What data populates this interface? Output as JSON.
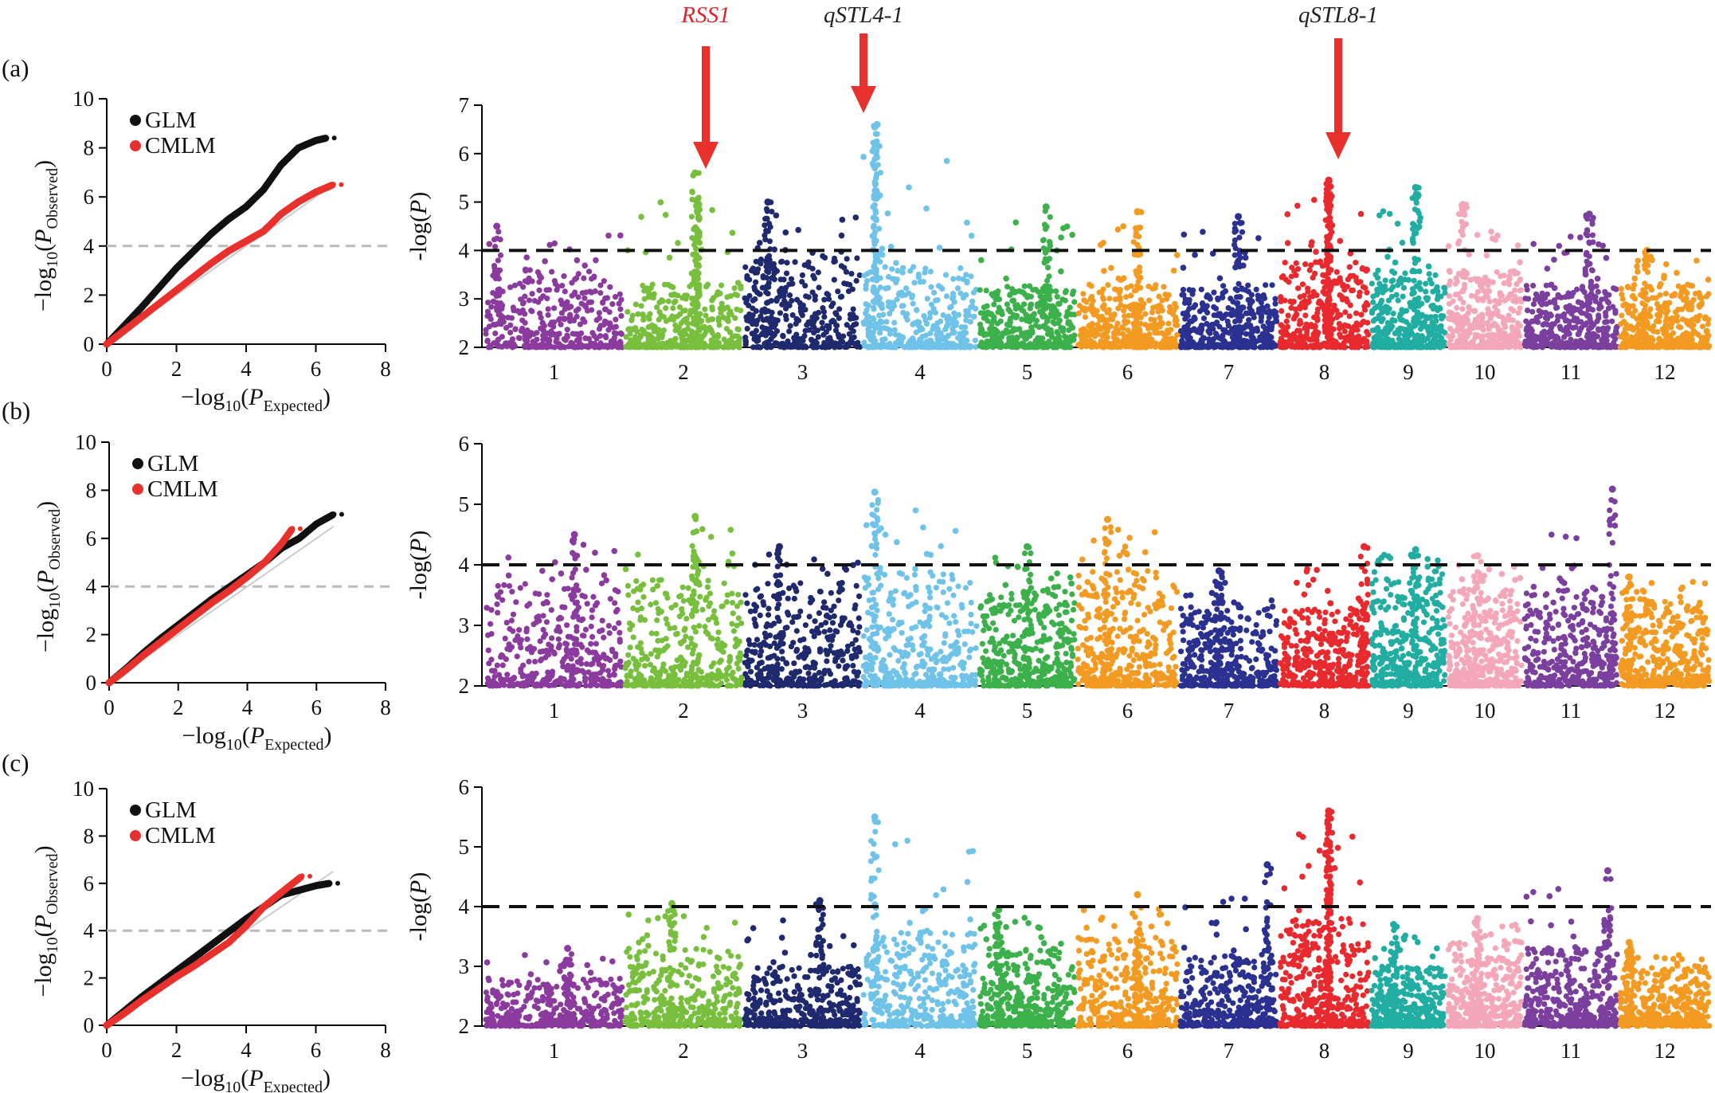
{
  "figure": {
    "panels": [
      "(a)",
      "(b)",
      "(c)"
    ],
    "markers": [
      {
        "label": "RSS1",
        "chromosome": 2,
        "color": "#d7262b"
      },
      {
        "label": "qSTL4-1",
        "chromosome": 4,
        "color": "#222222"
      },
      {
        "label": "qSTL8-1",
        "chromosome": 8,
        "color": "#222222"
      }
    ],
    "arrow_color": "#e8302c"
  },
  "colors": {
    "glm": "#111111",
    "cmlm": "#e8302c",
    "threshold_dash": "#111111",
    "qq_threshold": "#bbbbbb",
    "chromosomes": [
      "#8b3a9e",
      "#78bf3e",
      "#1f2a6e",
      "#6fc2e8",
      "#3cb04a",
      "#f29a21",
      "#2a3190",
      "#e82a2e",
      "#21ada2",
      "#f4a7b9",
      "#7b3f9e",
      "#f29a21"
    ]
  },
  "chart_data": [
    {
      "type": "scatter",
      "panel": "(a)",
      "subtype": "qq-plot",
      "xlabel_main": "−log",
      "xlabel_sub": "10",
      "xlabel_open": "(",
      "xlabel_P": "P",
      "xlabel_subscript": "Expected",
      "xlabel_close": ")",
      "ylabel_main": "−log",
      "ylabel_sub": "10",
      "ylabel_open": "(",
      "ylabel_P": "P",
      "ylabel_subscript": "Observed",
      "ylabel_close": ")",
      "xlim": [
        0,
        8
      ],
      "ylim": [
        0,
        10
      ],
      "xticks": [
        "0",
        "2",
        "4",
        "6",
        "8"
      ],
      "yticks": [
        "0",
        "2",
        "4",
        "6",
        "8",
        "10"
      ],
      "threshold": 4,
      "legend": [
        "GLM",
        "CMLM"
      ],
      "series": [
        {
          "name": "GLM",
          "points": [
            [
              0,
              0
            ],
            [
              0.5,
              0.75
            ],
            [
              1,
              1.5
            ],
            [
              1.5,
              2.3
            ],
            [
              2,
              3.1
            ],
            [
              2.5,
              3.8
            ],
            [
              3,
              4.5
            ],
            [
              3.5,
              5.1
            ],
            [
              4,
              5.6
            ],
            [
              4.5,
              6.3
            ],
            [
              5,
              7.3
            ],
            [
              5.5,
              8.0
            ],
            [
              6,
              8.3
            ],
            [
              6.3,
              8.4
            ]
          ]
        },
        {
          "name": "CMLM",
          "points": [
            [
              0,
              0
            ],
            [
              0.5,
              0.55
            ],
            [
              1,
              1.1
            ],
            [
              1.5,
              1.65
            ],
            [
              2,
              2.2
            ],
            [
              2.5,
              2.75
            ],
            [
              3,
              3.3
            ],
            [
              3.5,
              3.8
            ],
            [
              4,
              4.2
            ],
            [
              4.5,
              4.6
            ],
            [
              5,
              5.3
            ],
            [
              5.5,
              5.8
            ],
            [
              6,
              6.2
            ],
            [
              6.5,
              6.5
            ]
          ]
        }
      ]
    },
    {
      "type": "scatter",
      "panel": "(b)",
      "subtype": "qq-plot",
      "xlabel_main": "−log",
      "xlabel_sub": "10",
      "xlabel_open": "(",
      "xlabel_P": "P",
      "xlabel_subscript": "Expected",
      "xlabel_close": ")",
      "ylabel_main": "−log",
      "ylabel_sub": "10",
      "ylabel_open": "(",
      "ylabel_P": "P",
      "ylabel_subscript": "Observed",
      "ylabel_close": ")",
      "xlim": [
        0,
        8
      ],
      "ylim": [
        0,
        10
      ],
      "xticks": [
        "0",
        "2",
        "4",
        "6",
        "8"
      ],
      "yticks": [
        "0",
        "2",
        "4",
        "6",
        "8",
        "10"
      ],
      "threshold": 4,
      "legend": [
        "GLM",
        "CMLM"
      ],
      "series": [
        {
          "name": "GLM",
          "points": [
            [
              0,
              0
            ],
            [
              0.5,
              0.6
            ],
            [
              1,
              1.25
            ],
            [
              1.5,
              1.85
            ],
            [
              2,
              2.4
            ],
            [
              2.5,
              2.95
            ],
            [
              3,
              3.5
            ],
            [
              3.5,
              4.0
            ],
            [
              4,
              4.5
            ],
            [
              4.5,
              5.0
            ],
            [
              5,
              5.6
            ],
            [
              5.5,
              6.0
            ],
            [
              6,
              6.6
            ],
            [
              6.5,
              7.0
            ]
          ]
        },
        {
          "name": "CMLM",
          "points": [
            [
              0,
              0
            ],
            [
              0.5,
              0.55
            ],
            [
              1,
              1.15
            ],
            [
              1.5,
              1.7
            ],
            [
              2,
              2.25
            ],
            [
              2.5,
              2.8
            ],
            [
              3,
              3.35
            ],
            [
              3.5,
              3.85
            ],
            [
              4,
              4.4
            ],
            [
              4.5,
              5.0
            ],
            [
              5,
              5.8
            ],
            [
              5.3,
              6.4
            ]
          ]
        }
      ]
    },
    {
      "type": "scatter",
      "panel": "(c)",
      "subtype": "qq-plot",
      "xlabel_main": "−log",
      "xlabel_sub": "10",
      "xlabel_open": "(",
      "xlabel_P": "P",
      "xlabel_subscript": "Expected",
      "xlabel_close": ")",
      "ylabel_main": "−log",
      "ylabel_sub": "10",
      "ylabel_open": "(",
      "ylabel_P": "P",
      "ylabel_subscript": "Observed",
      "ylabel_close": ")",
      "xlim": [
        0,
        8
      ],
      "ylim": [
        0,
        10
      ],
      "xticks": [
        "0",
        "2",
        "4",
        "6",
        "8"
      ],
      "yticks": [
        "0",
        "2",
        "4",
        "6",
        "8",
        "10"
      ],
      "threshold": 4,
      "legend": [
        "GLM",
        "CMLM"
      ],
      "series": [
        {
          "name": "GLM",
          "points": [
            [
              0,
              0
            ],
            [
              0.5,
              0.6
            ],
            [
              1,
              1.2
            ],
            [
              1.5,
              1.75
            ],
            [
              2,
              2.3
            ],
            [
              2.5,
              2.85
            ],
            [
              3,
              3.4
            ],
            [
              3.5,
              3.95
            ],
            [
              4,
              4.5
            ],
            [
              4.5,
              5.0
            ],
            [
              5,
              5.5
            ],
            [
              5.5,
              5.7
            ],
            [
              6,
              5.9
            ],
            [
              6.4,
              6.0
            ]
          ]
        },
        {
          "name": "CMLM",
          "points": [
            [
              0,
              0
            ],
            [
              0.5,
              0.5
            ],
            [
              1,
              1.05
            ],
            [
              1.5,
              1.55
            ],
            [
              2,
              2.05
            ],
            [
              2.5,
              2.5
            ],
            [
              3,
              3.0
            ],
            [
              3.5,
              3.5
            ],
            [
              4,
              4.2
            ],
            [
              4.5,
              5.0
            ],
            [
              5,
              5.6
            ],
            [
              5.6,
              6.3
            ]
          ]
        }
      ]
    },
    {
      "type": "scatter",
      "panel": "(a)",
      "subtype": "manhattan",
      "ylabel_text": "-log(",
      "ylabel_P": "P",
      "ylabel_close": ")",
      "ylim": [
        2,
        7
      ],
      "yticks": [
        "2",
        "3",
        "4",
        "5",
        "6",
        "7"
      ],
      "threshold": 4,
      "chromosomes": [
        "1",
        "2",
        "3",
        "4",
        "5",
        "6",
        "7",
        "8",
        "9",
        "10",
        "11",
        "12"
      ],
      "chrom_peaks": [
        4.5,
        5.6,
        5.0,
        6.6,
        4.9,
        4.8,
        4.7,
        5.45,
        5.3,
        4.95,
        4.75,
        4.0
      ],
      "chrom_peak_pos": [
        0.08,
        0.6,
        0.2,
        0.12,
        0.7,
        0.6,
        0.6,
        0.55,
        0.6,
        0.2,
        0.7,
        0.3
      ],
      "chrom_base": [
        3.6,
        3.3,
        3.9,
        3.7,
        3.3,
        3.3,
        3.3,
        3.8,
        3.6,
        3.6,
        3.3,
        3.3
      ],
      "highlight": [
        {
          "chromosome": 2,
          "pos": 0.62,
          "value": 5.05
        },
        {
          "chromosome": 4,
          "pos": 0.1,
          "value": 6.55
        },
        {
          "chromosome": 8,
          "pos": 0.55,
          "value": 5.45
        }
      ]
    },
    {
      "type": "scatter",
      "panel": "(b)",
      "subtype": "manhattan",
      "ylabel_text": "-log(",
      "ylabel_P": "P",
      "ylabel_close": ")",
      "ylim": [
        2,
        6
      ],
      "yticks": [
        "2",
        "3",
        "4",
        "5",
        "6"
      ],
      "threshold": 4,
      "chromosomes": [
        "1",
        "2",
        "3",
        "4",
        "5",
        "6",
        "7",
        "8",
        "9",
        "10",
        "11",
        "12"
      ],
      "chrom_peaks": [
        4.5,
        4.8,
        4.3,
        5.2,
        4.3,
        4.75,
        3.9,
        4.3,
        4.25,
        4.15,
        5.25,
        3.8
      ],
      "chrom_peak_pos": [
        0.65,
        0.6,
        0.3,
        0.1,
        0.5,
        0.3,
        0.4,
        0.95,
        0.6,
        0.4,
        0.95,
        0.1
      ],
      "chrom_base": [
        3.7,
        3.8,
        3.7,
        3.9,
        3.6,
        3.9,
        3.3,
        3.3,
        3.9,
        3.6,
        3.6,
        3.4
      ],
      "highlight": []
    },
    {
      "type": "scatter",
      "panel": "(c)",
      "subtype": "manhattan",
      "ylabel_text": "-log(",
      "ylabel_P": "P",
      "ylabel_close": ")",
      "ylim": [
        2,
        6
      ],
      "yticks": [
        "2",
        "3",
        "4",
        "5",
        "6"
      ],
      "threshold": 4,
      "chromosomes": [
        "1",
        "2",
        "3",
        "4",
        "5",
        "6",
        "7",
        "8",
        "9",
        "10",
        "11",
        "12"
      ],
      "chrom_peaks": [
        3.3,
        4.05,
        4.1,
        5.5,
        3.95,
        4.2,
        4.7,
        5.6,
        3.7,
        3.8,
        4.6,
        3.4
      ],
      "chrom_peak_pos": [
        0.6,
        0.4,
        0.65,
        0.1,
        0.2,
        0.6,
        0.9,
        0.55,
        0.3,
        0.4,
        0.9,
        0.1
      ],
      "chrom_base": [
        2.8,
        3.3,
        3.0,
        3.6,
        3.3,
        3.5,
        3.2,
        3.8,
        3.0,
        3.4,
        3.3,
        3.0
      ],
      "highlight": [
        {
          "chromosome": 8,
          "pos": 0.55,
          "value": 5.6
        }
      ]
    }
  ]
}
